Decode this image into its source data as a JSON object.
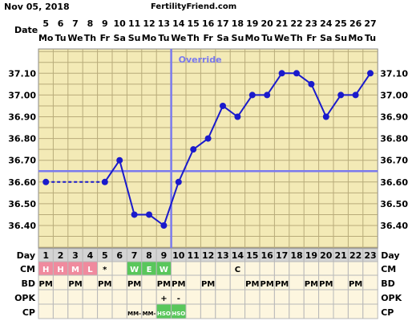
{
  "header": {
    "date": "Nov 05, 2018",
    "site": "FertilityFriend.com"
  },
  "chart_data": {
    "type": "line",
    "title": "",
    "xlabel": "Date",
    "ylabel": "",
    "ylim": [
      36.3,
      37.2
    ],
    "yticks": [
      36.4,
      36.5,
      36.6,
      36.7,
      36.8,
      36.9,
      37.0,
      37.1
    ],
    "dates": [
      "5",
      "6",
      "7",
      "8",
      "9",
      "10",
      "11",
      "12",
      "13",
      "14",
      "15",
      "16",
      "17",
      "18",
      "19",
      "20",
      "21",
      "22",
      "23",
      "24",
      "25",
      "26",
      "27"
    ],
    "weekdays": [
      "Mo",
      "Tu",
      "We",
      "Th",
      "Fr",
      "Sa",
      "Su",
      "Mo",
      "Tu",
      "We",
      "Th",
      "Fr",
      "Sa",
      "Su",
      "Mo",
      "Tu",
      "We",
      "Th",
      "Fr",
      "Sa",
      "Su",
      "Mo",
      "Tu"
    ],
    "cycle_days": [
      1,
      2,
      3,
      4,
      5,
      6,
      7,
      8,
      9,
      10,
      11,
      12,
      13,
      14,
      15,
      16,
      17,
      18,
      19,
      20,
      21,
      22,
      23
    ],
    "series": [
      {
        "values": [
          36.6,
          null,
          null,
          null,
          36.6,
          36.7,
          36.45,
          36.45,
          36.4,
          36.6,
          36.75,
          36.8,
          36.95,
          36.9,
          37.0,
          37.0,
          37.1,
          37.1,
          37.05,
          36.9,
          37.0,
          37.0,
          37.1
        ]
      }
    ],
    "coverline": 36.65,
    "ovulation_day": 10,
    "override_label": "Override",
    "rows": {
      "CM": [
        "H",
        "H",
        "M",
        "L",
        "*",
        "",
        "W",
        "E",
        "W",
        "",
        "",
        "",
        "",
        "C",
        "",
        "",
        "",
        "",
        "",
        "",
        "",
        "",
        ""
      ],
      "BD": [
        "PM",
        "",
        "PM",
        "",
        "PM",
        "",
        "PM",
        "",
        "PM",
        "PM",
        "",
        "PM",
        "",
        "",
        "PM",
        "PM",
        "PM",
        "",
        "PM",
        "PM",
        "",
        "PM",
        ""
      ],
      "OPK": [
        "",
        "",
        "",
        "",
        "",
        "",
        "",
        "",
        "+",
        "-",
        "",
        "",
        "",
        "",
        "",
        "",
        "",
        "",
        "",
        "",
        "",
        "",
        ""
      ],
      "CP": [
        "",
        "",
        "",
        "",
        "",
        "",
        "MM-",
        "MM-",
        "HSO",
        "HSO",
        "",
        "",
        "",
        "",
        "",
        "",
        "",
        "",
        "",
        "",
        "",
        "",
        ""
      ]
    },
    "row_labels": {
      "day": "Day",
      "cm": "CM",
      "bd": "BD",
      "opk": "OPK",
      "cp": "CP"
    },
    "colors": {
      "panel": "#f3eab6",
      "grid": "#b8ab7a",
      "line": "#1a1acc",
      "coverline": "#7a7aee",
      "cm_pink": "#f08a9e",
      "cm_green": "#59c75b",
      "day_grey": "#d4d4d4",
      "row_bg": "#fdf6df"
    }
  }
}
